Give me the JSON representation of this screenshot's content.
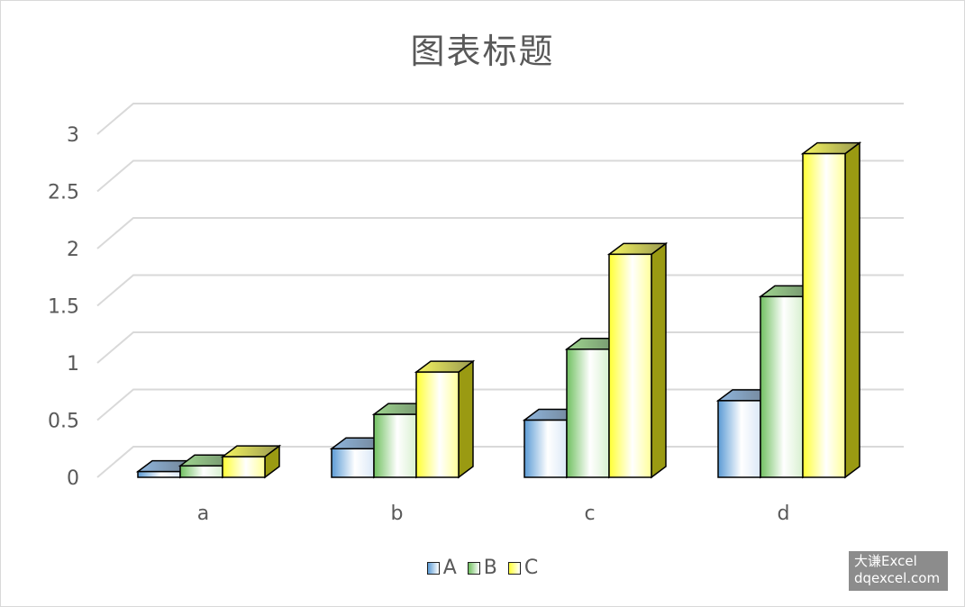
{
  "chart_data": {
    "type": "bar",
    "title": "图表标题",
    "categories": [
      "a",
      "b",
      "c",
      "d"
    ],
    "series": [
      {
        "name": "A",
        "values": [
          0.05,
          0.25,
          0.5,
          0.67
        ],
        "color": "#5b9bd5",
        "dark": "#2e5f8f"
      },
      {
        "name": "B",
        "values": [
          0.1,
          0.55,
          1.12,
          1.58
        ],
        "color": "#70c060",
        "dark": "#3a7a30"
      },
      {
        "name": "C",
        "values": [
          0.18,
          0.92,
          1.95,
          2.83
        ],
        "color": "#ffff33",
        "dark": "#9a9a12"
      }
    ],
    "yticks": [
      "0",
      "0.5",
      "1",
      "1.5",
      "2",
      "2.5",
      "3"
    ],
    "ylim": [
      0,
      3
    ],
    "grid": true,
    "legend_position": "bottom"
  },
  "watermark": {
    "line1": "大谦Excel",
    "line2": "dqexcel.com"
  }
}
